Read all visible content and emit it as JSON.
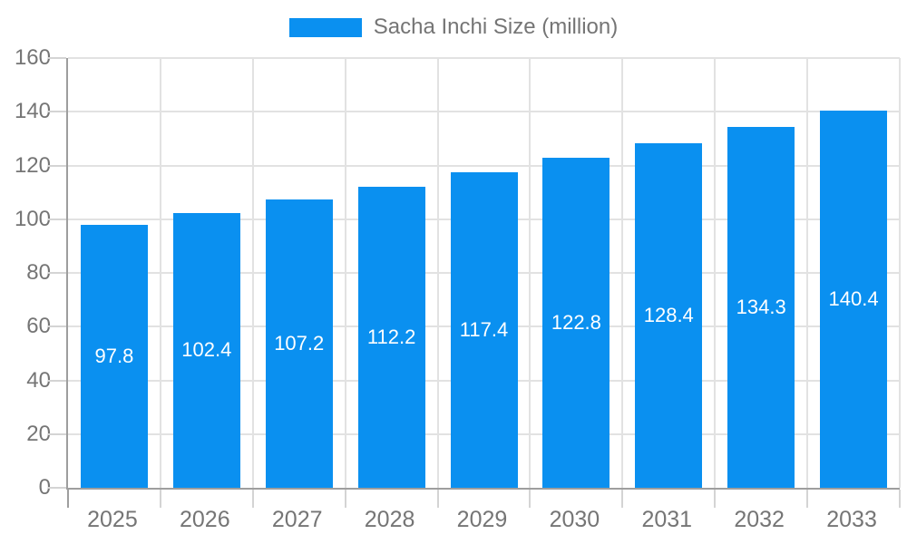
{
  "legend": {
    "label": "Sacha Inchi Size (million)"
  },
  "chart_data": {
    "type": "bar",
    "title": "Sacha Inchi Size (million)",
    "categories": [
      "2025",
      "2026",
      "2027",
      "2028",
      "2029",
      "2030",
      "2031",
      "2032",
      "2033"
    ],
    "series": [
      {
        "name": "Sacha Inchi Size (million)",
        "values": [
          97.8,
          102.4,
          107.2,
          112.2,
          117.4,
          122.8,
          128.4,
          134.3,
          140.4
        ]
      }
    ],
    "value_labels": [
      "97.8",
      "102.4",
      "107.2",
      "112.2",
      "117.4",
      "122.8",
      "128.4",
      "134.3",
      "140.4"
    ],
    "xlabel": "",
    "ylabel": "",
    "ylim": [
      0,
      160
    ],
    "yticks": [
      0,
      20,
      40,
      60,
      80,
      100,
      120,
      140,
      160
    ],
    "grid": true,
    "legend_position": "top",
    "colors": {
      "bar": "#0a90f0",
      "grid_line": "#e2e2e2",
      "axis_line": "#9e9e9e",
      "tick_line": "#d4d4d4",
      "axis_text": "#757575",
      "legend_text": "#757575",
      "value_label_text": "#ffffff",
      "background": "#ffffff"
    }
  }
}
